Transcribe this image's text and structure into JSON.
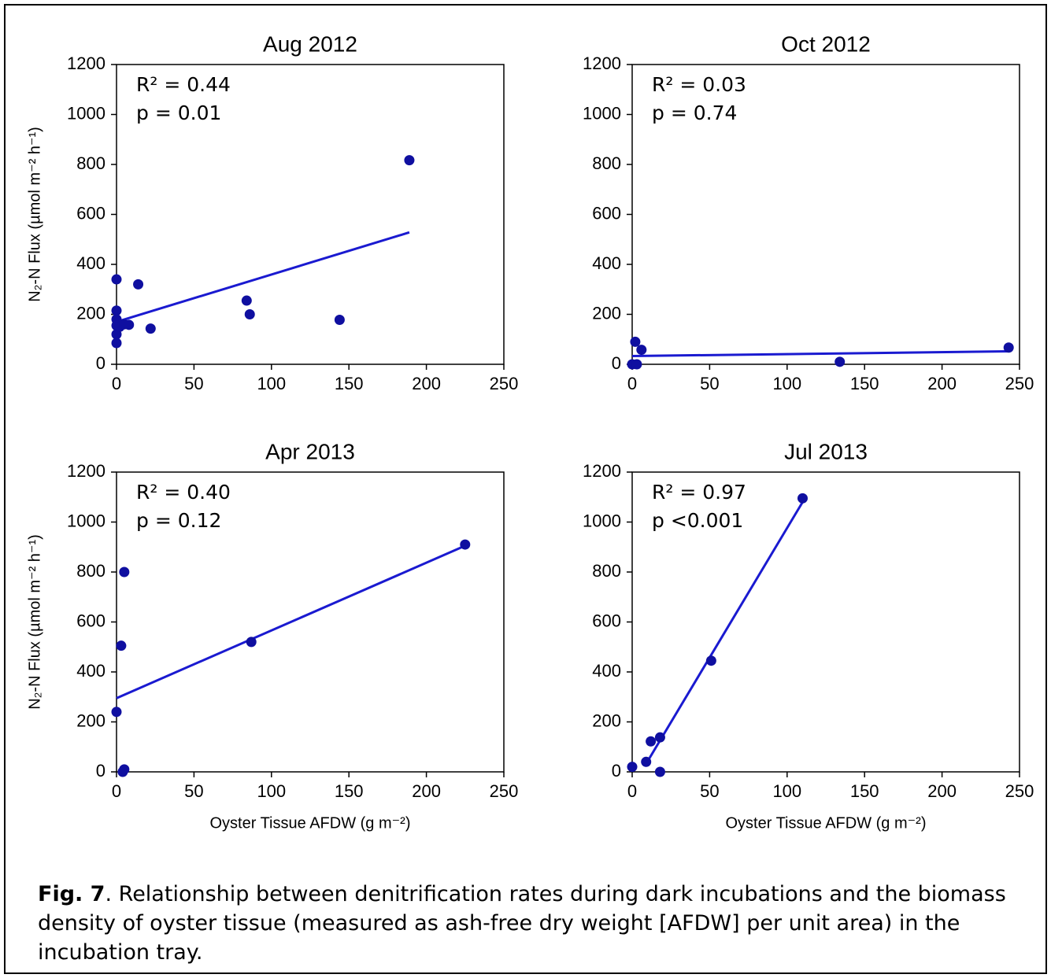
{
  "chart_data": [
    {
      "type": "scatter",
      "title": "Aug 2012",
      "y_label": "N₂-N Flux (µmol m⁻² h⁻¹)",
      "annotations": [
        "R² = 0.44",
        "p = 0.01"
      ],
      "color": "#0f0fa0",
      "line_color": "#1a1ad0",
      "x": [
        0,
        0,
        0,
        0,
        0,
        0,
        2,
        5,
        8,
        14,
        22,
        84,
        86,
        144,
        189
      ],
      "values": [
        340,
        215,
        180,
        155,
        120,
        85,
        150,
        160,
        158,
        320,
        143,
        255,
        200,
        178,
        817
      ],
      "fit": {
        "x": [
          0,
          189
        ],
        "y": [
          170,
          528
        ]
      },
      "xlim": [
        0,
        250
      ],
      "ylim": [
        0,
        1200
      ],
      "xticks": [
        0,
        50,
        100,
        150,
        200,
        250
      ],
      "yticks": [
        0,
        200,
        400,
        600,
        800,
        1000,
        1200
      ]
    },
    {
      "type": "scatter",
      "title": "Oct 2012",
      "annotations": [
        "R² = 0.03",
        "p = 0.74"
      ],
      "color": "#0f0fa0",
      "line_color": "#1a1ad0",
      "x": [
        0,
        2,
        3,
        6,
        134,
        243
      ],
      "values": [
        0,
        90,
        0,
        58,
        10,
        67
      ],
      "fit": {
        "x": [
          0,
          243
        ],
        "y": [
          33,
          52
        ]
      },
      "xlim": [
        0,
        250
      ],
      "ylim": [
        0,
        1200
      ],
      "xticks": [
        0,
        50,
        100,
        150,
        200,
        250
      ],
      "yticks": [
        0,
        200,
        400,
        600,
        800,
        1000,
        1200
      ]
    },
    {
      "type": "scatter",
      "title": "Apr 2013",
      "y_label": "N₂-N Flux (µmol m⁻² h⁻¹)",
      "x_label": "Oyster Tissue AFDW (g m⁻²)",
      "annotations": [
        "R² = 0.40",
        "p = 0.12"
      ],
      "color": "#0f0fa0",
      "line_color": "#1a1ad0",
      "x": [
        0,
        3,
        4,
        5,
        5,
        87,
        225
      ],
      "values": [
        240,
        505,
        0,
        800,
        10,
        520,
        910
      ],
      "fit": {
        "x": [
          0,
          225
        ],
        "y": [
          295,
          905
        ]
      },
      "xlim": [
        0,
        250
      ],
      "ylim": [
        0,
        1200
      ],
      "xticks": [
        0,
        50,
        100,
        150,
        200,
        250
      ],
      "yticks": [
        0,
        200,
        400,
        600,
        800,
        1000,
        1200
      ]
    },
    {
      "type": "scatter",
      "title": "Jul 2013",
      "x_label": "Oyster Tissue AFDW (g m⁻²)",
      "annotations": [
        "R² = 0.97",
        "p <0.001"
      ],
      "color": "#0f0fa0",
      "line_color": "#1a1ad0",
      "x": [
        0,
        9,
        12,
        18,
        18,
        51,
        110
      ],
      "values": [
        20,
        40,
        122,
        0,
        138,
        445,
        1095
      ],
      "fit": {
        "x": [
          8,
          110
        ],
        "y": [
          22,
          1080
        ]
      },
      "xlim": [
        0,
        250
      ],
      "ylim": [
        0,
        1200
      ],
      "xticks": [
        0,
        50,
        100,
        150,
        200,
        250
      ],
      "yticks": [
        0,
        200,
        400,
        600,
        800,
        1000,
        1200
      ]
    }
  ],
  "caption": {
    "label": "Fig. 7",
    "text": ". Relationship between denitrification rates during dark incubations and the biomass density of oyster tissue (measured as ash-free dry weight [AFDW] per unit area) in the incubation tray."
  }
}
